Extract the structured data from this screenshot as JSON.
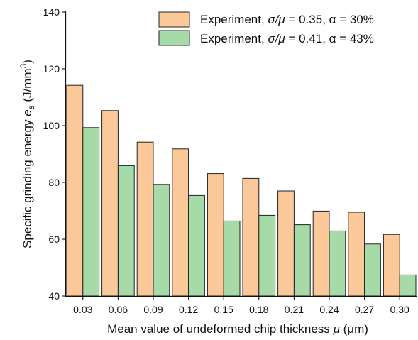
{
  "chart_data": {
    "type": "bar",
    "categories": [
      "0.03",
      "0.06",
      "0.09",
      "0.12",
      "0.15",
      "0.18",
      "0.21",
      "0.24",
      "0.27",
      "0.30"
    ],
    "series": [
      {
        "name": "Experiment, σ/μ = 0.35, α = 30%",
        "label_parts": [
          "Experiment, ",
          "σ/μ",
          " = 0.35, α = 30%"
        ],
        "values": [
          114.2,
          105.3,
          94.2,
          91.8,
          83.1,
          81.4,
          77.0,
          69.9,
          69.5,
          61.7
        ],
        "color": "#FAC899"
      },
      {
        "name": "Experiment, σ/μ = 0.41, α = 43%",
        "label_parts": [
          "Experiment, ",
          "σ/μ",
          " = 0.41, α = 43%"
        ],
        "values": [
          99.3,
          85.9,
          79.3,
          75.4,
          66.4,
          68.4,
          65.1,
          62.9,
          58.3,
          47.4
        ],
        "color": "#A6DBA8"
      }
    ],
    "title": "",
    "xlabel": {
      "text": "Mean value of undeformed chip thickness ",
      "symbol": "μ",
      "unit": " (μm)"
    },
    "ylabel": {
      "text": "Specific grinding energy ",
      "symbol": "e",
      "subscript": "s",
      "unit": " (J/mm",
      "superscript": "3",
      "close": ")"
    },
    "ylim": [
      40,
      140
    ],
    "yticks": [
      "40",
      "60",
      "80",
      "100",
      "120",
      "140"
    ],
    "grid": false,
    "legend_position": "top-right"
  }
}
